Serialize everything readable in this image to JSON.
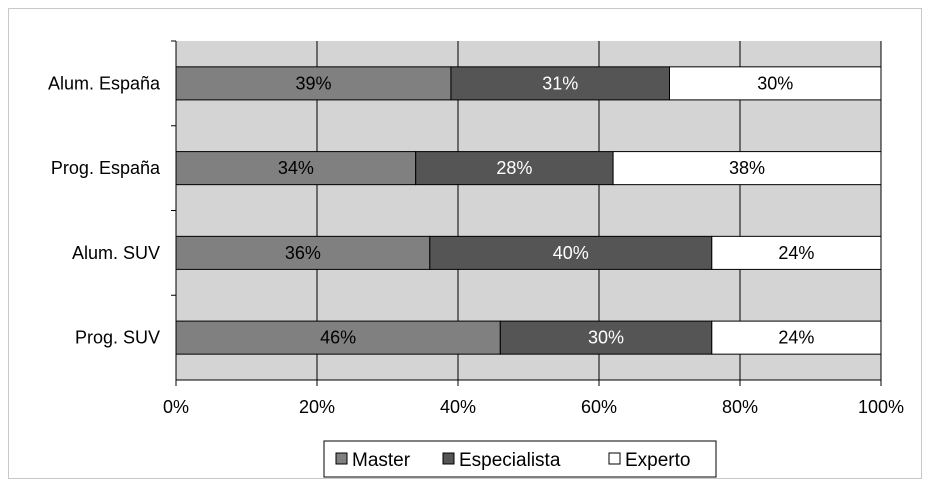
{
  "chart_data": {
    "type": "bar",
    "orientation": "horizontal",
    "stacked": "percent",
    "categories": [
      "Alum. España",
      "Prog. España",
      "Alum. SUV",
      "Prog. SUV"
    ],
    "series": [
      {
        "name": "Master",
        "values": [
          39,
          34,
          36,
          46
        ],
        "color": "#808080",
        "label_color": "#000000"
      },
      {
        "name": "Especialista",
        "values": [
          31,
          28,
          40,
          30
        ],
        "color": "#555555",
        "label_color": "#ffffff"
      },
      {
        "name": "Experto",
        "values": [
          30,
          38,
          24,
          24
        ],
        "color": "#ffffff",
        "label_color": "#000000"
      }
    ],
    "data_labels": [
      [
        "39%",
        "31%",
        "30%"
      ],
      [
        "34%",
        "28%",
        "38%"
      ],
      [
        "36%",
        "40%",
        "24%"
      ],
      [
        "46%",
        "30%",
        "24%"
      ]
    ],
    "x_ticks": [
      "0%",
      "20%",
      "40%",
      "60%",
      "80%",
      "100%"
    ],
    "xlim": [
      0,
      100
    ],
    "grid": "vertical",
    "legend_position": "bottom",
    "plot_background": "#d4d4d4"
  }
}
